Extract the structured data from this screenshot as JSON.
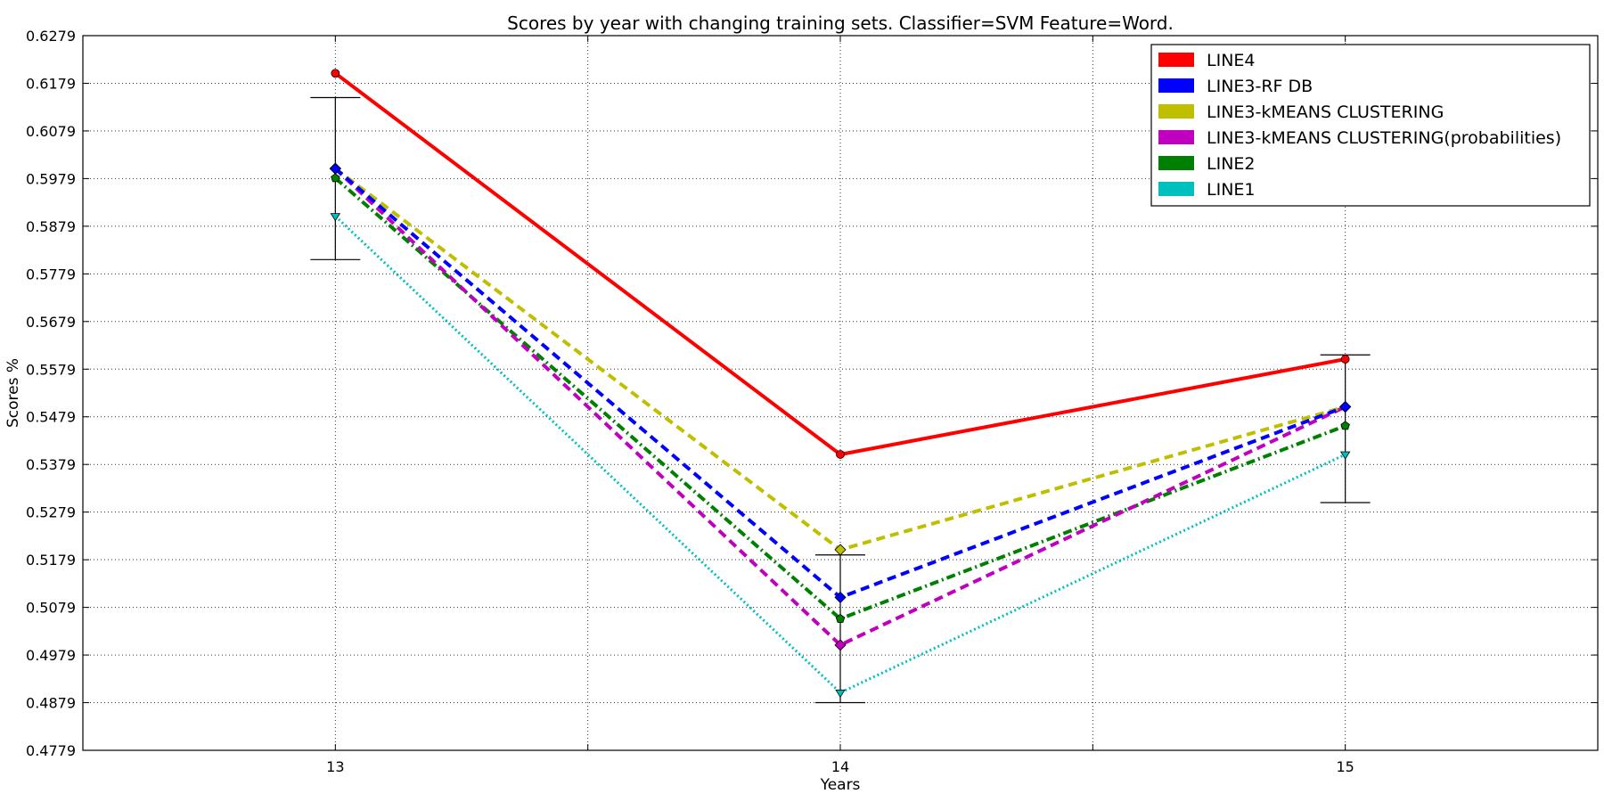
{
  "chart_data": {
    "type": "line",
    "title": "Scores by year with changing training sets. Classifier=SVM Feature=Word.",
    "xlabel": "Years",
    "ylabel": "Scores %",
    "x": [
      13,
      14,
      15
    ],
    "x_tick_labels": [
      "13",
      "14",
      "15"
    ],
    "xlim": [
      12.5,
      15.5
    ],
    "ylim": [
      0.4779,
      0.6279
    ],
    "y_ticks": [
      0.4779,
      0.4879,
      0.4979,
      0.5079,
      0.5179,
      0.5279,
      0.5379,
      0.5479,
      0.5579,
      0.5679,
      0.5779,
      0.5879,
      0.5979,
      0.6079,
      0.6179,
      0.6279
    ],
    "y_tick_labels": [
      "0.4779",
      "0.4879",
      "0.4979",
      "0.5079",
      "0.5179",
      "0.5279",
      "0.5379",
      "0.5479",
      "0.5579",
      "0.5679",
      "0.5779",
      "0.5879",
      "0.5979",
      "0.6079",
      "0.6179",
      "0.6279"
    ],
    "grid": true,
    "legend_position": "top-right",
    "series": [
      {
        "name": "LINE4",
        "values": [
          0.62,
          0.54,
          0.56
        ],
        "color": "#ff0000",
        "dash": "solid",
        "marker": "circle"
      },
      {
        "name": "LINE3-RF DB",
        "values": [
          0.6,
          0.51,
          0.55
        ],
        "color": "#0000ff",
        "dash": "dashed",
        "marker": "diamond"
      },
      {
        "name": "LINE3-kMEANS CLUSTERING",
        "values": [
          0.6,
          0.52,
          0.55
        ],
        "color": "#bfbf00",
        "dash": "dashed",
        "marker": "diamond"
      },
      {
        "name": "LINE3-kMEANS CLUSTERING(probabilities)",
        "values": [
          0.6,
          0.5,
          0.55
        ],
        "color": "#bf00bf",
        "dash": "dashed",
        "marker": "diamond"
      },
      {
        "name": "LINE2",
        "values": [
          0.598,
          0.5055,
          0.546
        ],
        "color": "#008000",
        "dash": "dashdot",
        "marker": "pentagon"
      },
      {
        "name": "LINE1",
        "values": [
          0.59,
          0.49,
          0.54
        ],
        "color": "#00bfbf",
        "dash": "dotted",
        "marker": "triangle"
      }
    ],
    "error_bars": [
      {
        "x": 13,
        "low": 0.5809,
        "high": 0.6149
      },
      {
        "x": 14,
        "low": 0.4879,
        "high": 0.5189
      },
      {
        "x": 15,
        "low": 0.5299,
        "high": 0.5609
      }
    ]
  }
}
